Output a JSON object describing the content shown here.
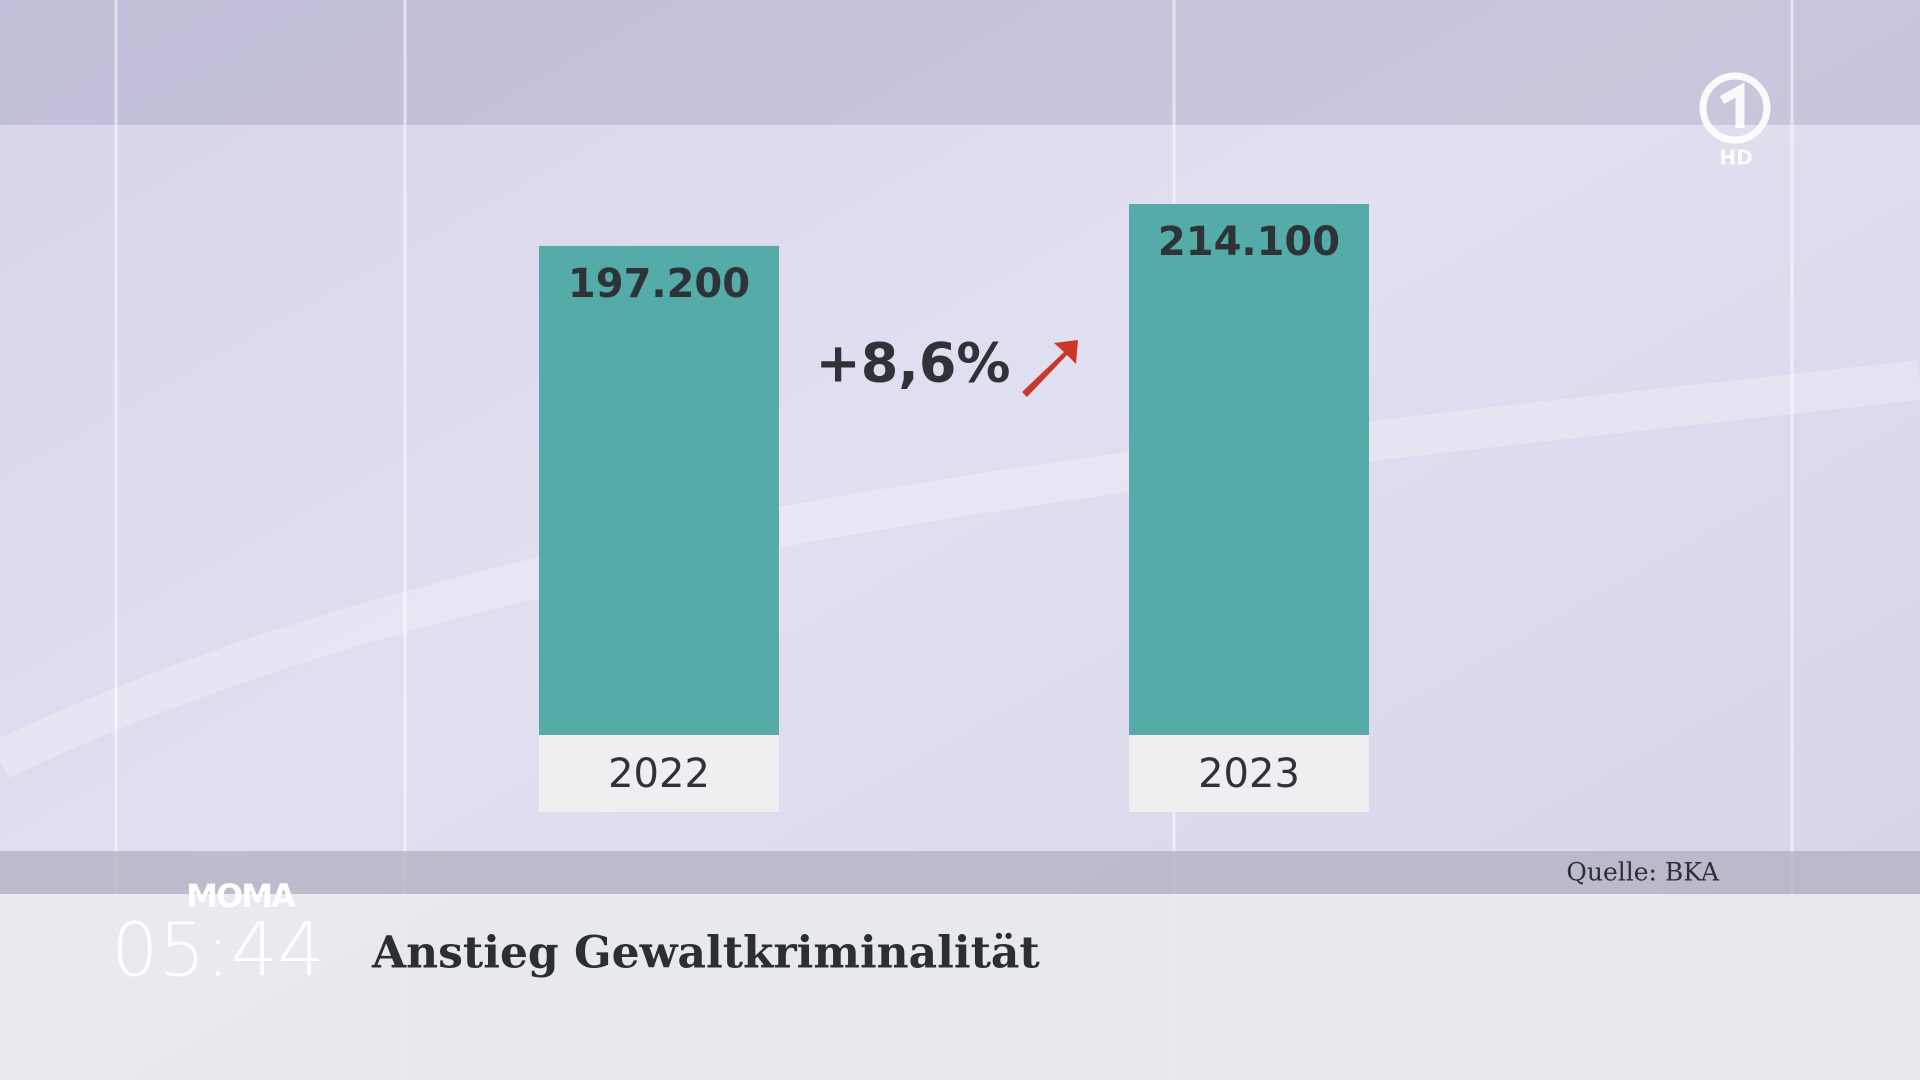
{
  "chart_data": {
    "type": "bar",
    "title": "Anstieg Gewaltkriminalität",
    "categories": [
      "2022",
      "2023"
    ],
    "values": [
      197200,
      214100
    ],
    "value_labels": [
      "197.200",
      "214.100"
    ],
    "color": "#55aba8",
    "annotation": "+8,6%",
    "source": "Quelle: BKA"
  },
  "broadcast": {
    "show": "MOMA",
    "time": "05:44",
    "channel_badge": "HD"
  }
}
